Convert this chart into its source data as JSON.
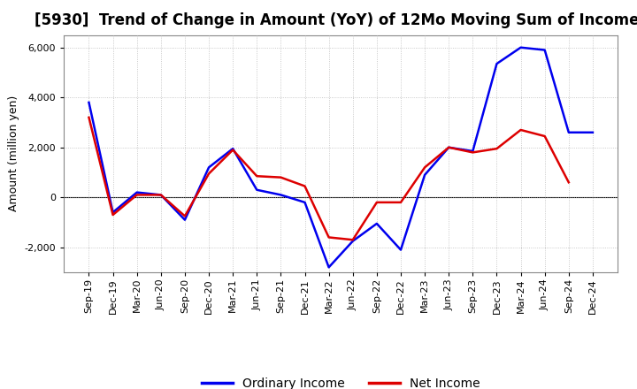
{
  "title": "[5930]  Trend of Change in Amount (YoY) of 12Mo Moving Sum of Incomes",
  "ylabel": "Amount (million yen)",
  "labels": [
    "Sep-19",
    "Dec-19",
    "Mar-20",
    "Jun-20",
    "Sep-20",
    "Dec-20",
    "Mar-21",
    "Jun-21",
    "Sep-21",
    "Dec-21",
    "Mar-22",
    "Jun-22",
    "Sep-22",
    "Dec-22",
    "Mar-23",
    "Jun-23",
    "Sep-23",
    "Dec-23",
    "Mar-24",
    "Jun-24",
    "Sep-24",
    "Dec-24"
  ],
  "ordinary_income": [
    3800,
    -600,
    200,
    100,
    -900,
    1200,
    1950,
    300,
    100,
    -200,
    -2800,
    -1750,
    -1050,
    -2100,
    900,
    2000,
    1850,
    5350,
    6000,
    5900,
    2600,
    2600
  ],
  "net_income": [
    3200,
    -700,
    100,
    100,
    -750,
    950,
    1900,
    850,
    800,
    450,
    -1600,
    -1700,
    -200,
    -200,
    1200,
    2000,
    1800,
    1950,
    2700,
    2450,
    600,
    null
  ],
  "ordinary_color": "#0000ee",
  "net_color": "#dd0000",
  "bg_color": "#ffffff",
  "plot_bg_color": "#ffffff",
  "grid_color": "#bbbbbb",
  "ylim": [
    -3000,
    6500
  ],
  "yticks": [
    -2000,
    0,
    2000,
    4000,
    6000
  ],
  "legend_labels": [
    "Ordinary Income",
    "Net Income"
  ],
  "line_width": 1.8,
  "title_fontsize": 12,
  "axis_fontsize": 9,
  "tick_fontsize": 8
}
